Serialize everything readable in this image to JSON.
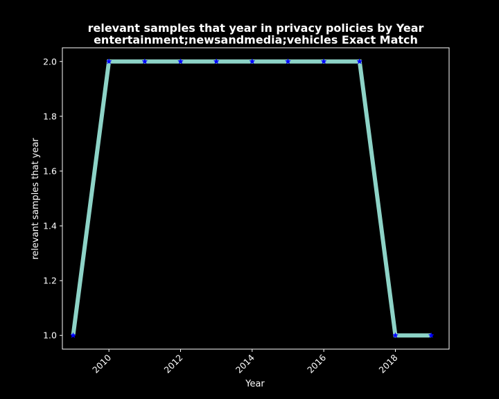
{
  "chart_data": {
    "type": "line",
    "title_line1": "relevant samples that year in privacy policies by Year",
    "title_line2": "entertainment;newsandmedia;vehicles Exact Match",
    "xlabel": "Year",
    "ylabel": "relevant samples that year",
    "xlim": [
      2008.7,
      2019.5
    ],
    "ylim": [
      0.95,
      2.05
    ],
    "x_ticks": [
      2010,
      2012,
      2014,
      2016,
      2018
    ],
    "y_ticks": [
      "1.0",
      "1.2",
      "1.4",
      "1.6",
      "1.8",
      "2.0"
    ],
    "grid": false,
    "series": [
      {
        "x": [
          2009,
          2010,
          2011,
          2012,
          2013,
          2014,
          2015,
          2016,
          2017,
          2018,
          2019
        ],
        "y": [
          1,
          2,
          2,
          2,
          2,
          2,
          2,
          2,
          2,
          1,
          1
        ],
        "line_color": "#8dd3c7",
        "marker_color": "#0000ff",
        "marker": "star"
      }
    ]
  }
}
